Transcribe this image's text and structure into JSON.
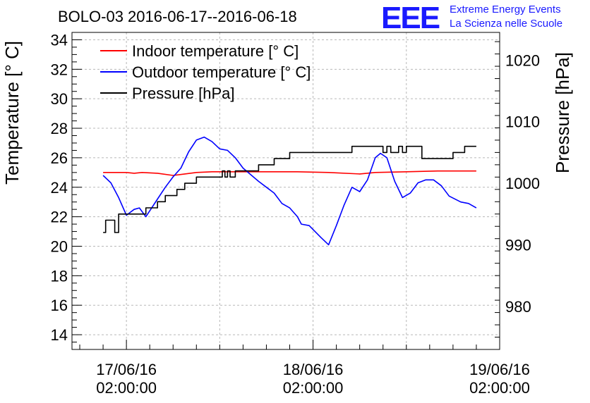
{
  "brand": {
    "logo": "EEE",
    "line1": "Extreme Energy Events",
    "line2": "La Scienza nelle Scuole"
  },
  "chart_data": {
    "type": "line",
    "title": "BOLO-03 2016-06-17--2016-06-18",
    "ylabel_left": "Temperature [° C]",
    "ylabel_right": "Pressure [hPa]",
    "xlim": [
      "2016-06-16 19:00",
      "2016-06-19 02:00"
    ],
    "ylim_left": [
      13,
      34.5
    ],
    "ylim_right": [
      973,
      1024.5
    ],
    "yticks_left": [
      14,
      16,
      18,
      20,
      22,
      24,
      26,
      28,
      30,
      32,
      34
    ],
    "yticks_right": [
      980,
      990,
      1000,
      1010,
      1020
    ],
    "xticks": [
      {
        "t": "2016-06-17 02:00",
        "date": "17/06/16",
        "time": "02:00:00"
      },
      {
        "t": "2016-06-18 02:00",
        "date": "18/06/16",
        "time": "02:00:00"
      },
      {
        "t": "2016-06-19 02:00",
        "date": "19/06/16",
        "time": "02:00:00"
      }
    ],
    "grid": true,
    "legend_position": "top-left",
    "series": [
      {
        "name": "Indoor temperature [° C]",
        "axis": "left",
        "color": "#ff0000",
        "points": [
          [
            "2016-06-16 23:00",
            25.0
          ],
          [
            "2016-06-17 02:00",
            25.0
          ],
          [
            "2016-06-17 03:00",
            24.95
          ],
          [
            "2016-06-17 04:00",
            25.0
          ],
          [
            "2016-06-17 06:00",
            24.95
          ],
          [
            "2016-06-17 08:00",
            24.8
          ],
          [
            "2016-06-17 09:30",
            24.9
          ],
          [
            "2016-06-17 11:00",
            25.0
          ],
          [
            "2016-06-17 13:00",
            25.05
          ],
          [
            "2016-06-17 16:00",
            25.05
          ],
          [
            "2016-06-17 20:00",
            25.05
          ],
          [
            "2016-06-18 00:00",
            25.05
          ],
          [
            "2016-06-18 04:00",
            25.0
          ],
          [
            "2016-06-18 08:00",
            24.9
          ],
          [
            "2016-06-18 10:00",
            25.0
          ],
          [
            "2016-06-18 14:00",
            25.05
          ],
          [
            "2016-06-18 18:00",
            25.1
          ],
          [
            "2016-06-18 23:00",
            25.1
          ]
        ]
      },
      {
        "name": "Outdoor temperature [° C]",
        "axis": "left",
        "color": "#0000ff",
        "points": [
          [
            "2016-06-16 23:00",
            24.8
          ],
          [
            "2016-06-17 00:00",
            24.3
          ],
          [
            "2016-06-17 01:00",
            23.3
          ],
          [
            "2016-06-17 02:00",
            22.1
          ],
          [
            "2016-06-17 03:00",
            22.5
          ],
          [
            "2016-06-17 03:40",
            22.6
          ],
          [
            "2016-06-17 04:30",
            22.0
          ],
          [
            "2016-06-17 06:00",
            23.2
          ],
          [
            "2016-06-17 07:00",
            24.0
          ],
          [
            "2016-06-17 08:00",
            24.7
          ],
          [
            "2016-06-17 09:00",
            25.3
          ],
          [
            "2016-06-17 10:00",
            26.4
          ],
          [
            "2016-06-17 11:00",
            27.2
          ],
          [
            "2016-06-17 12:00",
            27.4
          ],
          [
            "2016-06-17 13:00",
            27.1
          ],
          [
            "2016-06-17 14:00",
            26.6
          ],
          [
            "2016-06-17 15:00",
            26.5
          ],
          [
            "2016-06-17 16:00",
            26.0
          ],
          [
            "2016-06-17 17:00",
            25.3
          ],
          [
            "2016-06-17 19:00",
            24.4
          ],
          [
            "2016-06-17 21:00",
            23.6
          ],
          [
            "2016-06-17 22:00",
            22.9
          ],
          [
            "2016-06-17 23:00",
            22.6
          ],
          [
            "2016-06-18 00:00",
            22.0
          ],
          [
            "2016-06-18 00:30",
            21.5
          ],
          [
            "2016-06-18 01:30",
            21.4
          ],
          [
            "2016-06-18 03:00",
            20.6
          ],
          [
            "2016-06-18 04:00",
            20.1
          ],
          [
            "2016-06-18 05:00",
            21.4
          ],
          [
            "2016-06-18 06:00",
            22.8
          ],
          [
            "2016-06-18 07:00",
            24.0
          ],
          [
            "2016-06-18 08:00",
            23.7
          ],
          [
            "2016-06-18 09:00",
            24.5
          ],
          [
            "2016-06-18 10:00",
            26.0
          ],
          [
            "2016-06-18 10:40",
            26.3
          ],
          [
            "2016-06-18 11:30",
            26.0
          ],
          [
            "2016-06-18 12:30",
            24.4
          ],
          [
            "2016-06-18 13:30",
            23.3
          ],
          [
            "2016-06-18 14:30",
            23.6
          ],
          [
            "2016-06-18 15:30",
            24.3
          ],
          [
            "2016-06-18 16:30",
            24.5
          ],
          [
            "2016-06-18 17:30",
            24.5
          ],
          [
            "2016-06-18 18:30",
            24.1
          ],
          [
            "2016-06-18 19:30",
            23.4
          ],
          [
            "2016-06-18 21:00",
            23.0
          ],
          [
            "2016-06-18 22:00",
            22.9
          ],
          [
            "2016-06-18 23:00",
            22.6
          ]
        ]
      },
      {
        "name": "Pressure [hPa]",
        "axis": "right",
        "color": "#000000",
        "step": true,
        "points": [
          [
            "2016-06-16 23:00",
            992.0
          ],
          [
            "2016-06-16 23:20",
            994.0
          ],
          [
            "2016-06-17 00:30",
            992.0
          ],
          [
            "2016-06-17 01:00",
            995.0
          ],
          [
            "2016-06-17 04:00",
            995.0
          ],
          [
            "2016-06-17 04:30",
            996.0
          ],
          [
            "2016-06-17 06:00",
            997.0
          ],
          [
            "2016-06-17 07:00",
            998.0
          ],
          [
            "2016-06-17 08:00",
            998.0
          ],
          [
            "2016-06-17 08:30",
            999.0
          ],
          [
            "2016-06-17 09:30",
            1000.0
          ],
          [
            "2016-06-17 11:00",
            1001.0
          ],
          [
            "2016-06-17 14:00",
            1001.0
          ],
          [
            "2016-06-17 14:20",
            1002.0
          ],
          [
            "2016-06-17 14:40",
            1001.0
          ],
          [
            "2016-06-17 15:00",
            1002.0
          ],
          [
            "2016-06-17 15:20",
            1001.0
          ],
          [
            "2016-06-17 16:00",
            1002.0
          ],
          [
            "2016-06-17 19:00",
            1003.0
          ],
          [
            "2016-06-17 21:00",
            1004.0
          ],
          [
            "2016-06-17 23:00",
            1005.0
          ],
          [
            "2016-06-18 04:00",
            1005.0
          ],
          [
            "2016-06-18 07:00",
            1006.0
          ],
          [
            "2016-06-18 10:00",
            1006.0
          ],
          [
            "2016-06-18 11:00",
            1005.0
          ],
          [
            "2016-06-18 11:30",
            1006.0
          ],
          [
            "2016-06-18 12:00",
            1005.0
          ],
          [
            "2016-06-18 13:00",
            1006.0
          ],
          [
            "2016-06-18 13:30",
            1005.0
          ],
          [
            "2016-06-18 14:00",
            1006.0
          ],
          [
            "2016-06-18 16:00",
            1004.0
          ],
          [
            "2016-06-18 20:00",
            1005.0
          ],
          [
            "2016-06-18 21:30",
            1006.0
          ],
          [
            "2016-06-18 23:00",
            1006.0
          ]
        ]
      }
    ]
  }
}
